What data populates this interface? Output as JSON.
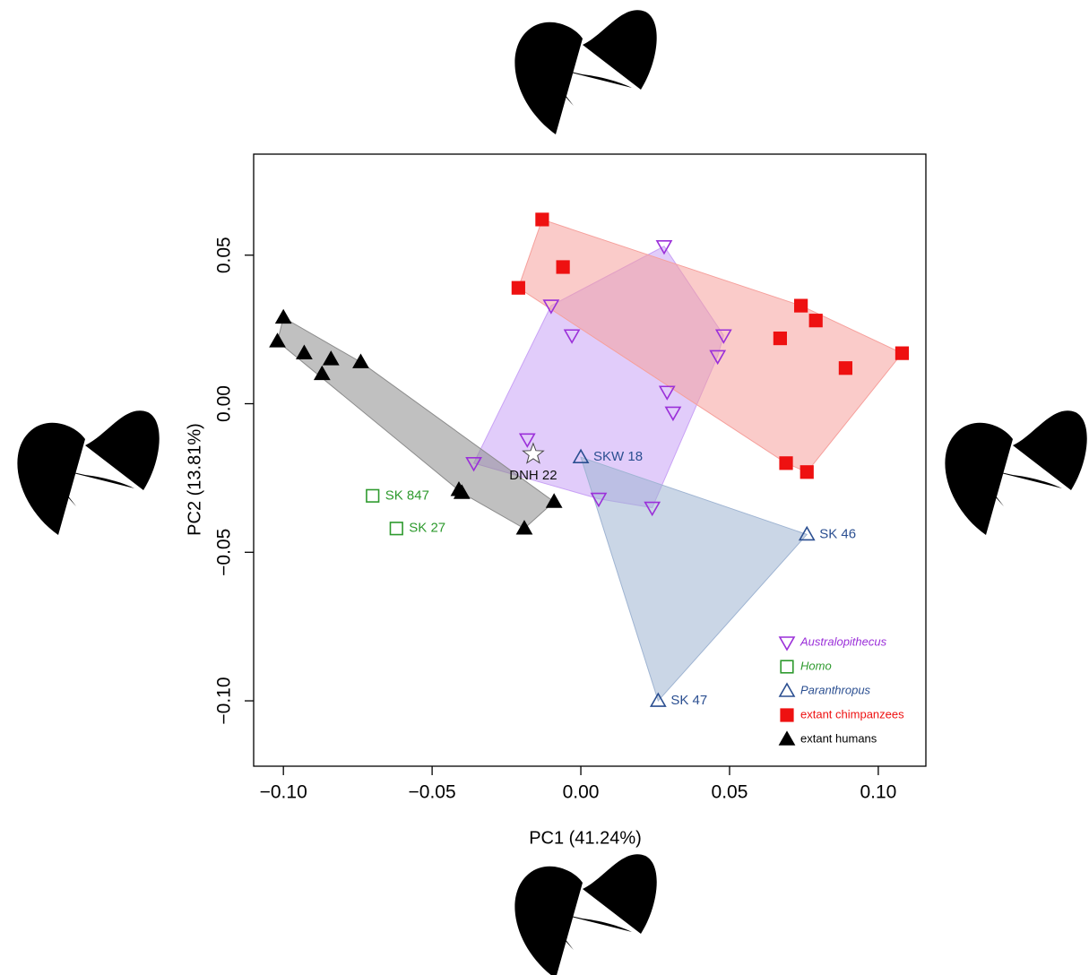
{
  "chart_data": {
    "type": "scatter",
    "x_label": "PC1 (41.24%)",
    "y_label": "PC2 (13.81%)",
    "xlim": [
      -0.11,
      0.116
    ],
    "ylim": [
      -0.122,
      0.084
    ],
    "xticks": [
      {
        "value": -0.1,
        "label": "−0.10"
      },
      {
        "value": -0.05,
        "label": "−0.05"
      },
      {
        "value": 0,
        "label": "0.00"
      },
      0.05,
      {
        "value": 0.1,
        "label": "0.10"
      }
    ],
    "yticks": [
      {
        "value": -0.1,
        "label": "−0.10"
      },
      {
        "value": -0.05,
        "label": "−0.05"
      },
      {
        "value": 0,
        "label": "0.00"
      },
      0.05
    ],
    "legend": "bottom-right",
    "series": [
      {
        "name": "Australopithecus",
        "color": "#9b30d9",
        "hull_color": "#c9a2f5",
        "marker": "triangle-down-open",
        "italic": true,
        "hull": true,
        "x": [
          0.028,
          -0.01,
          -0.003,
          0.048,
          0.046,
          0.029,
          0.031,
          -0.018,
          -0.036,
          0.006,
          0.024
        ],
        "values": [
          0.053,
          0.033,
          0.023,
          0.023,
          0.016,
          0.004,
          -0.003,
          -0.012,
          -0.02,
          -0.032,
          -0.035
        ]
      },
      {
        "name": "Homo",
        "color": "#2e9a2e",
        "marker": "square-open",
        "italic": true,
        "hull": false,
        "x": [
          -0.07,
          -0.062
        ],
        "values": [
          -0.031,
          -0.042
        ],
        "labels": [
          "SK 847",
          "SK 27"
        ]
      },
      {
        "name": "Paranthropus",
        "color": "#2b4f91",
        "hull_color": "#9fb4d2",
        "marker": "triangle-open",
        "italic": true,
        "hull": true,
        "x": [
          0.0,
          0.076,
          0.026
        ],
        "values": [
          -0.018,
          -0.044,
          -0.1
        ],
        "labels": [
          "SKW 18",
          "SK 46",
          "SK 47"
        ]
      },
      {
        "name": "extant chimpanzees",
        "color": "#ee1111",
        "hull_color": "#f6a09c",
        "marker": "square",
        "italic": false,
        "hull": true,
        "x": [
          -0.013,
          -0.006,
          -0.021,
          0.074,
          0.079,
          0.067,
          0.089,
          0.108,
          0.069,
          0.076
        ],
        "values": [
          0.062,
          0.046,
          0.039,
          0.033,
          0.028,
          0.022,
          0.012,
          0.017,
          -0.02,
          -0.023
        ]
      },
      {
        "name": "extant humans",
        "color": "#000000",
        "hull_color": "#8c8c8c",
        "marker": "triangle",
        "italic": false,
        "hull": true,
        "x": [
          -0.1,
          -0.102,
          -0.093,
          -0.084,
          -0.087,
          -0.074,
          -0.041,
          -0.04,
          -0.009,
          -0.019
        ],
        "values": [
          0.029,
          0.021,
          0.017,
          0.015,
          0.01,
          0.014,
          -0.029,
          -0.03,
          -0.033,
          -0.042
        ]
      }
    ],
    "annotations": [
      {
        "label": "DNH 22",
        "x": -0.016,
        "y": -0.017,
        "marker": "star"
      }
    ]
  }
}
